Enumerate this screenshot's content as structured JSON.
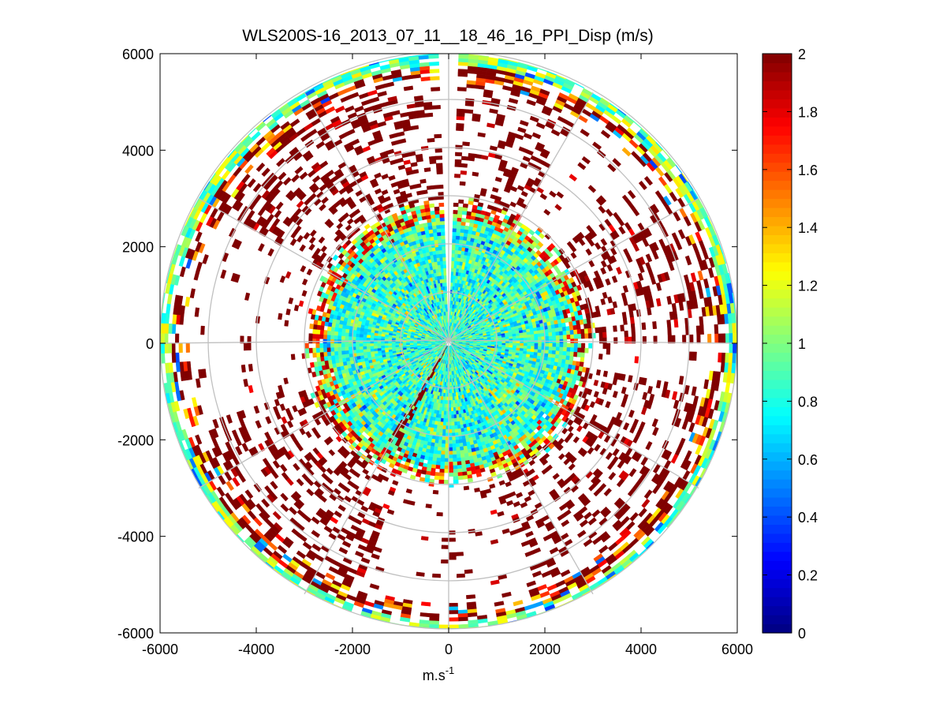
{
  "chart_data": {
    "type": "heatmap",
    "subtype": "polar-ppi",
    "title": "WLS200S-16_2013_07_11__18_46_16_PPI_Disp (m/s)",
    "xlabel": "m.s",
    "xlabel_superscript": "-1",
    "ylabel": "",
    "xlim": [
      -6000,
      6000
    ],
    "ylim": [
      -6000,
      6000
    ],
    "x_ticks": [
      "-6000",
      "-4000",
      "-2000",
      "0",
      "2000",
      "4000",
      "6000"
    ],
    "y_ticks": [
      "6000",
      "4000",
      "2000",
      "0",
      "-2000",
      "-4000",
      "-6000"
    ],
    "x_tick_values": [
      -6000,
      -4000,
      -2000,
      0,
      2000,
      4000,
      6000
    ],
    "y_tick_values": [
      6000,
      4000,
      2000,
      0,
      -2000,
      -4000,
      -6000
    ],
    "max_range": 6000,
    "range_rings": [
      1000,
      2000,
      3000,
      4000,
      5000,
      6000
    ],
    "spoke_angles_deg": [
      0,
      30,
      60,
      90,
      120,
      150,
      180,
      210,
      240,
      270,
      300,
      330
    ],
    "grid": true,
    "colormap": "jet",
    "colorbar": {
      "min": 0,
      "max": 2,
      "tick_values": [
        0,
        0.2,
        0.4,
        0.6,
        0.8,
        1,
        1.2,
        1.4,
        1.6,
        1.8,
        2
      ],
      "tick_labels": [
        "0",
        "0.2",
        "0.4",
        "0.6",
        "0.8",
        "1",
        "1.2",
        "1.4",
        "1.6",
        "1.8",
        "2"
      ]
    },
    "field_description": {
      "inner_zone_range": [
        0,
        2900
      ],
      "inner_zone_value_range": [
        0.6,
        1.1
      ],
      "mid_zone_value": 2,
      "outer_edge_range": [
        5400,
        6000
      ],
      "outer_edge_value_range": [
        0.7,
        1.3
      ]
    }
  }
}
